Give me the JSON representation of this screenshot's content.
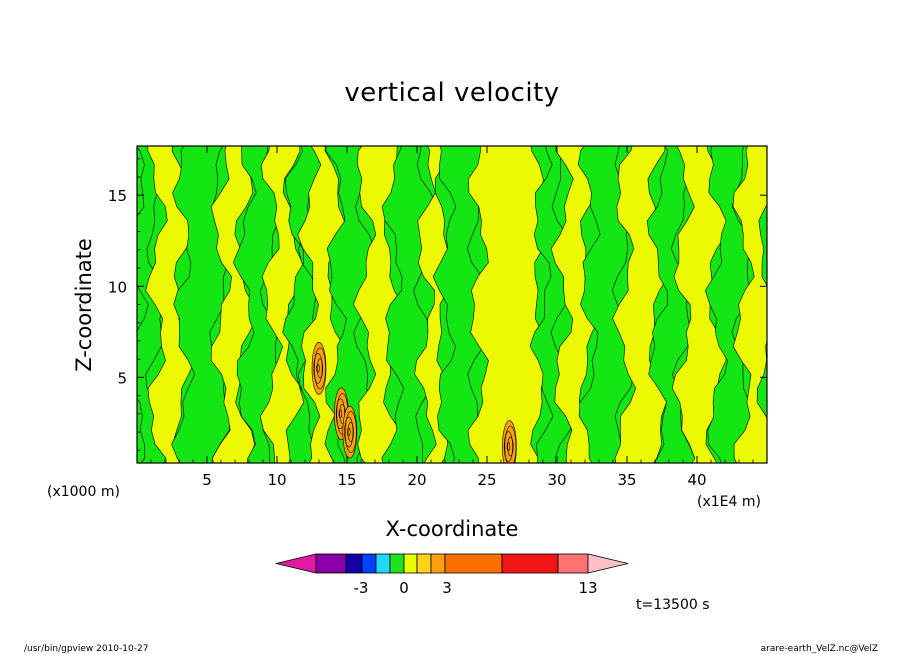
{
  "chart_data": {
    "type": "heatmap",
    "title": "vertical velocity",
    "xlabel": "X-coordinate",
    "ylabel": "Z-coordinate",
    "x_unit": "(x1E4 m)",
    "y_unit": "(x1000 m)",
    "xlim": [
      0,
      45
    ],
    "ylim": [
      0.3,
      17.7
    ],
    "x_ticks": [
      "5",
      "10",
      "15",
      "20",
      "25",
      "30",
      "35",
      "40"
    ],
    "y_ticks": [
      "5",
      "10",
      "15"
    ],
    "x_tick_values": [
      5,
      10,
      15,
      20,
      25,
      30,
      35,
      40
    ],
    "y_tick_values": [
      5,
      10,
      15
    ],
    "bands": [
      {
        "x0": 0,
        "x1": 1.4,
        "level": "green"
      },
      {
        "x0": 1.4,
        "x1": 3.3,
        "level": "yellow"
      },
      {
        "x0": 3.3,
        "x1": 6.0,
        "level": "green"
      },
      {
        "x0": 6.0,
        "x1": 7.7,
        "level": "yellow"
      },
      {
        "x0": 7.7,
        "x1": 9.6,
        "level": "green"
      },
      {
        "x0": 9.6,
        "x1": 11.2,
        "level": "yellow"
      },
      {
        "x0": 11.2,
        "x1": 12.3,
        "level": "green"
      },
      {
        "x0": 12.3,
        "x1": 14.2,
        "level": "yellow"
      },
      {
        "x0": 14.2,
        "x1": 16.3,
        "level": "green"
      },
      {
        "x0": 16.3,
        "x1": 18.3,
        "level": "yellow"
      },
      {
        "x0": 18.3,
        "x1": 20.6,
        "level": "green"
      },
      {
        "x0": 20.6,
        "x1": 22.0,
        "level": "yellow"
      },
      {
        "x0": 22.0,
        "x1": 24.4,
        "level": "green"
      },
      {
        "x0": 24.4,
        "x1": 28.9,
        "level": "yellow"
      },
      {
        "x0": 28.9,
        "x1": 30.4,
        "level": "green"
      },
      {
        "x0": 30.4,
        "x1": 32.3,
        "level": "yellow"
      },
      {
        "x0": 32.3,
        "x1": 34.8,
        "level": "green"
      },
      {
        "x0": 34.8,
        "x1": 37.2,
        "level": "yellow"
      },
      {
        "x0": 37.2,
        "x1": 39.0,
        "level": "green"
      },
      {
        "x0": 39.0,
        "x1": 41.4,
        "level": "yellow"
      },
      {
        "x0": 41.4,
        "x1": 43.3,
        "level": "green"
      },
      {
        "x0": 43.3,
        "x1": 45.0,
        "level": "yellow"
      }
    ],
    "convective_cells": [
      {
        "x": 13.0,
        "z": 5.5,
        "level": "orange"
      },
      {
        "x": 14.6,
        "z": 3.0,
        "level": "orange"
      },
      {
        "x": 15.2,
        "z": 2.0,
        "level": "orange"
      },
      {
        "x": 26.6,
        "z": 1.2,
        "level": "orange"
      }
    ],
    "colorbar": {
      "tick_labels": [
        "-3",
        "0",
        "3",
        "13"
      ],
      "colors": [
        "#e01aa0",
        "#8a00a8",
        "#1400a8",
        "#0042ff",
        "#21d6ff",
        "#1ee21e",
        "#e8ff00",
        "#ffd21c",
        "#ff9f10",
        "#ff6e00",
        "#f21515",
        "#ff7272",
        "#ffc0c8"
      ]
    },
    "time_label": "t=13500 s"
  },
  "colors": {
    "green": "#14e614",
    "yellow": "#ebfa00",
    "orange": "#ffa200",
    "contour": "#000000"
  },
  "footer": {
    "left": "/usr/bin/gpview   2010-10-27",
    "right": "arare-earth_VelZ.nc@VelZ"
  }
}
